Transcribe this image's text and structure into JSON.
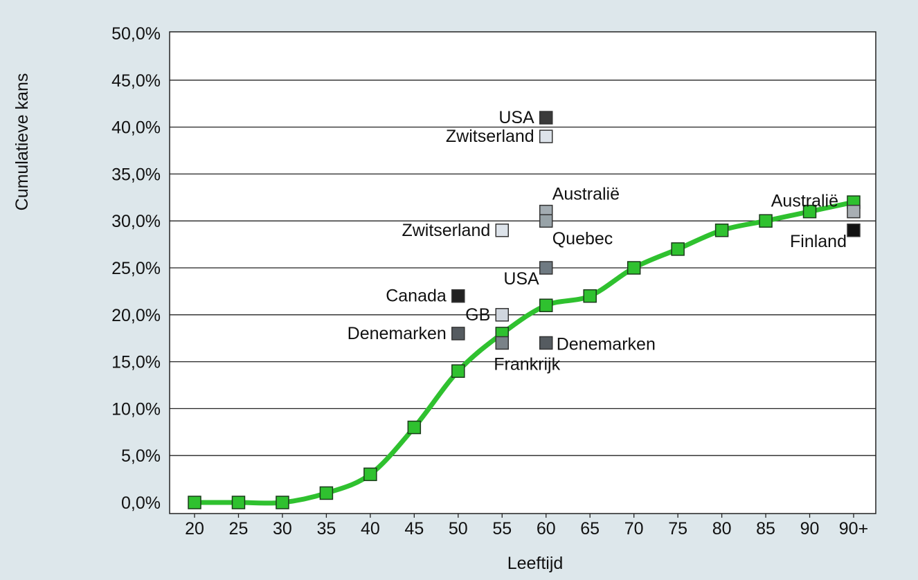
{
  "chart_data": {
    "type": "line",
    "title": "",
    "xlabel": "Leeftijd",
    "ylabel": "Cumulatieve kans",
    "ylim": [
      0,
      50
    ],
    "grid": true,
    "yticks": [
      "0,0%",
      "5,0%",
      "10,0%",
      "15,0%",
      "20,0%",
      "25,0%",
      "30,0%",
      "35,0%",
      "40,0%",
      "45,0%",
      "50,0%"
    ],
    "categories": [
      "20",
      "25",
      "30",
      "35",
      "40",
      "45",
      "50",
      "55",
      "60",
      "65",
      "70",
      "75",
      "80",
      "85",
      "90",
      "90+"
    ],
    "series": [
      {
        "name": "Cumulatieve kans",
        "color": "#2fc12f",
        "values": [
          0,
          0,
          0,
          1,
          3,
          8,
          14,
          18,
          21,
          22,
          25,
          27,
          29,
          30,
          31,
          32
        ]
      }
    ],
    "annotations": [
      {
        "label": "USA",
        "category": "60",
        "value": 41,
        "color": "#3a3a3a",
        "placement": "left"
      },
      {
        "label": "Zwitserland",
        "category": "60",
        "value": 39,
        "color": "#dde3ea",
        "placement": "left"
      },
      {
        "label": "Australië",
        "category": "60",
        "value": 31,
        "color": "#a3acb2",
        "placement": "above-right"
      },
      {
        "label": "Quebec",
        "category": "60",
        "value": 30,
        "color": "#98a3a8",
        "placement": "below-right"
      },
      {
        "label": "Zwitserland",
        "category": "55",
        "value": 29,
        "color": "#dde3ea",
        "placement": "left"
      },
      {
        "label": "USA",
        "category": "60",
        "value": 25,
        "color": "#6f7a82",
        "placement": "below-left"
      },
      {
        "label": "Canada",
        "category": "50",
        "value": 22,
        "color": "#222222",
        "placement": "left"
      },
      {
        "label": "GB",
        "category": "55",
        "value": 20,
        "color": "#d0d6de",
        "placement": "left"
      },
      {
        "label": "Denemarken",
        "category": "50",
        "value": 18,
        "color": "#555b60",
        "placement": "left"
      },
      {
        "label": "Frankrijk",
        "category": "55",
        "value": 17,
        "color": "#7a8288",
        "placement": "below"
      },
      {
        "label": "Denemarken",
        "category": "60",
        "value": 17,
        "color": "#555b60",
        "placement": "right"
      },
      {
        "label": "Australië",
        "category": "90+",
        "value": 31,
        "color": "#a8aeb3",
        "placement": "above-left"
      },
      {
        "label": "Finland",
        "category": "90+",
        "value": 29,
        "color": "#111111",
        "placement": "below-left"
      }
    ]
  }
}
